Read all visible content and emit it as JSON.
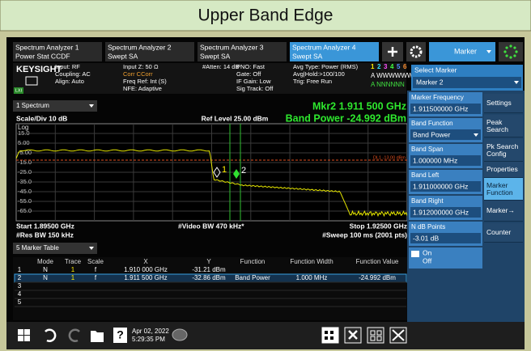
{
  "title": "Upper Band Edge",
  "tabs": {
    "active": 3,
    "items": [
      {
        "line1": "Spectrum Analyzer 1",
        "line2": "Power Stat CCDF"
      },
      {
        "line1": "Spectrum Analyzer 2",
        "line2": "Swept SA"
      },
      {
        "line1": "Spectrum Analyzer 3",
        "line2": "Swept SA"
      },
      {
        "line1": "Spectrum Analyzer 4",
        "line2": "Swept SA"
      }
    ]
  },
  "toolbar": {
    "menu": "Marker"
  },
  "status": {
    "brand": "KEYSIGHT",
    "lxi": "LXI",
    "col1": [
      "Input: RF",
      "Coupling: AC",
      "Align: Auto"
    ],
    "col2": [
      "Input Z: 50 Ω",
      "Corr CCorr",
      "Freq Ref: Int (S)",
      "NFE: Adaptive"
    ],
    "col3": [
      "#Atten: 14 dB"
    ],
    "col4": [
      "PNO: Fast",
      "Gate: Off",
      "IF Gain: Low",
      "Sig Track: Off"
    ],
    "col5": [
      "Avg Type: Power (RMS)",
      "Avg|Hold:>100/100",
      "Trig: Free Run"
    ],
    "traces": [
      "1",
      "2",
      "3",
      "4",
      "5",
      "6"
    ],
    "trace_types": "A WWWWWW",
    "detectors": "A NNNNNN"
  },
  "plot": {
    "window": "1 Spectrum",
    "scale": "Scale/Div 10 dB",
    "ref_level": "Ref Level 25.00 dBm",
    "log": "Log",
    "marker_readout": "Mkr2  1.911 500 GHz",
    "band_power": "Band Power  -24.992 dBm",
    "y_labels": [
      "15.0",
      "5.00",
      "-5.00",
      "-15.0",
      "-25.0",
      "-35.0",
      "-45.0",
      "-55.0",
      "-65.0"
    ],
    "display_line": "DL1 -13.00 dBm",
    "markers": [
      "1",
      "2"
    ],
    "start": "Start 1.89500 GHz",
    "res_bw": "#Res BW 150 kHz",
    "video_bw": "#Video BW 470 kHz*",
    "stop": "Stop 1.92500 GHz",
    "sweep": "#Sweep 100 ms (2001 pts)"
  },
  "marker_table": {
    "window": "5 Marker Table",
    "columns": [
      "Mode",
      "Trace",
      "Scale",
      "X",
      "Y",
      "Function",
      "Function Width",
      "Function Value"
    ],
    "selected_row": 1,
    "rows": [
      [
        "1",
        "N",
        "1",
        "f",
        "1.910 000 GHz",
        "-31.21 dBm"
      ],
      [
        "2",
        "N",
        "1",
        "f",
        "1.911 500 GHz",
        "-32.86 dBm",
        "Band Power",
        "1.000 MHz",
        "-24.992 dBm"
      ],
      [
        "3"
      ],
      [
        "4"
      ],
      [
        "5"
      ]
    ]
  },
  "side": {
    "select_label": "Select Marker",
    "select_value": "Marker 2",
    "fields": [
      {
        "label": "Marker Frequency",
        "value": "1.911500000 GHz"
      },
      {
        "label": "Band Function",
        "value": "Band Power"
      },
      {
        "label": "Band Span",
        "value": "1.000000 MHz"
      },
      {
        "label": "Band Left",
        "value": "1.911000000 GHz"
      },
      {
        "label": "Band Right",
        "value": "1.912000000 GHz"
      },
      {
        "label": "N dB Points",
        "value": "-3.01 dB"
      }
    ],
    "toggle": [
      "On",
      "Off"
    ],
    "tabs": [
      "Settings",
      "Peak Search",
      "Pk Search Config",
      "Properties",
      "Marker Function",
      "Marker→",
      "Counter"
    ],
    "active_tab": 4
  },
  "taskbar": {
    "help": "?",
    "date": "Apr 02, 2022",
    "time": "5:29:35 PM"
  }
}
